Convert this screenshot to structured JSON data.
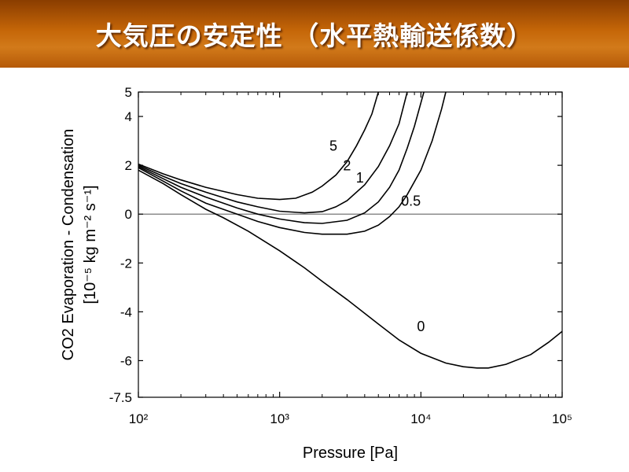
{
  "slide": {
    "title": "大気圧の安定性 （水平熱輸送係数）"
  },
  "chart_data": {
    "type": "line",
    "title": "",
    "xlabel": "Pressure [Pa]",
    "ylabel_line1": "CO2 Evaporation - Condensation",
    "ylabel_line2": "[10⁻⁵ kg m⁻² s⁻¹]",
    "x_scale": "log",
    "xlim": [
      100,
      100000
    ],
    "ylim": [
      -7.5,
      5
    ],
    "x_ticks": [
      {
        "value": 100,
        "label": "10²"
      },
      {
        "value": 1000,
        "label": "10³"
      },
      {
        "value": 10000,
        "label": "10⁴"
      },
      {
        "value": 100000,
        "label": "10⁵"
      }
    ],
    "y_ticks": [
      {
        "value": 5,
        "label": "5"
      },
      {
        "value": 4,
        "label": "4"
      },
      {
        "value": 2,
        "label": "2"
      },
      {
        "value": 0,
        "label": "0"
      },
      {
        "value": -2,
        "label": "-2"
      },
      {
        "value": -4,
        "label": "-4"
      },
      {
        "value": -6,
        "label": "-6"
      },
      {
        "value": -7.5,
        "label": "-7.5"
      }
    ],
    "reference_line": {
      "y": 0
    },
    "grid": false,
    "series": [
      {
        "name": "0",
        "label": "0",
        "label_x": 10000,
        "label_y": -4.8,
        "points": [
          [
            100,
            1.8
          ],
          [
            150,
            1.25
          ],
          [
            200,
            0.8
          ],
          [
            300,
            0.2
          ],
          [
            400,
            -0.15
          ],
          [
            600,
            -0.7
          ],
          [
            1000,
            -1.5
          ],
          [
            1500,
            -2.2
          ],
          [
            2000,
            -2.75
          ],
          [
            3000,
            -3.5
          ],
          [
            5000,
            -4.5
          ],
          [
            7000,
            -5.15
          ],
          [
            10000,
            -5.7
          ],
          [
            15000,
            -6.1
          ],
          [
            20000,
            -6.25
          ],
          [
            25000,
            -6.3
          ],
          [
            30000,
            -6.3
          ],
          [
            40000,
            -6.15
          ],
          [
            60000,
            -5.75
          ],
          [
            80000,
            -5.25
          ],
          [
            100000,
            -4.8
          ]
        ]
      },
      {
        "name": "0.5",
        "label": "0.5",
        "label_x": 8500,
        "label_y": 0.35,
        "points": [
          [
            100,
            1.9
          ],
          [
            150,
            1.35
          ],
          [
            200,
            0.95
          ],
          [
            300,
            0.45
          ],
          [
            500,
            0.0
          ],
          [
            700,
            -0.3
          ],
          [
            1000,
            -0.55
          ],
          [
            1500,
            -0.75
          ],
          [
            2000,
            -0.82
          ],
          [
            3000,
            -0.82
          ],
          [
            4000,
            -0.7
          ],
          [
            5000,
            -0.45
          ],
          [
            6000,
            -0.1
          ],
          [
            7000,
            0.3
          ],
          [
            8000,
            0.8
          ],
          [
            10000,
            1.8
          ],
          [
            12000,
            3.0
          ],
          [
            14000,
            4.3
          ],
          [
            15000,
            5.0
          ]
        ]
      },
      {
        "name": "1",
        "label": "1",
        "label_x": 3700,
        "label_y": 1.3,
        "points": [
          [
            100,
            1.95
          ],
          [
            150,
            1.45
          ],
          [
            200,
            1.1
          ],
          [
            300,
            0.7
          ],
          [
            500,
            0.25
          ],
          [
            700,
            0.0
          ],
          [
            1000,
            -0.2
          ],
          [
            1500,
            -0.35
          ],
          [
            2000,
            -0.38
          ],
          [
            3000,
            -0.25
          ],
          [
            4000,
            0.05
          ],
          [
            5000,
            0.5
          ],
          [
            6000,
            1.1
          ],
          [
            7000,
            1.8
          ],
          [
            8000,
            2.7
          ],
          [
            9000,
            3.6
          ],
          [
            10500,
            5.0
          ]
        ]
      },
      {
        "name": "2",
        "label": "2",
        "label_x": 3000,
        "label_y": 1.8,
        "points": [
          [
            100,
            2.0
          ],
          [
            150,
            1.55
          ],
          [
            200,
            1.25
          ],
          [
            300,
            0.9
          ],
          [
            500,
            0.5
          ],
          [
            700,
            0.3
          ],
          [
            1000,
            0.12
          ],
          [
            1500,
            0.05
          ],
          [
            2000,
            0.1
          ],
          [
            2500,
            0.3
          ],
          [
            3000,
            0.55
          ],
          [
            4000,
            1.2
          ],
          [
            5000,
            1.95
          ],
          [
            6000,
            2.8
          ],
          [
            7000,
            3.7
          ],
          [
            8000,
            5.0
          ]
        ]
      },
      {
        "name": "5",
        "label": "5",
        "label_x": 2400,
        "label_y": 2.6,
        "points": [
          [
            100,
            2.05
          ],
          [
            150,
            1.65
          ],
          [
            200,
            1.4
          ],
          [
            300,
            1.1
          ],
          [
            500,
            0.8
          ],
          [
            700,
            0.65
          ],
          [
            1000,
            0.6
          ],
          [
            1300,
            0.65
          ],
          [
            1700,
            0.9
          ],
          [
            2000,
            1.15
          ],
          [
            2500,
            1.6
          ],
          [
            3000,
            2.15
          ],
          [
            3500,
            2.8
          ],
          [
            4000,
            3.45
          ],
          [
            4500,
            4.1
          ],
          [
            5000,
            5.0
          ]
        ]
      }
    ]
  }
}
